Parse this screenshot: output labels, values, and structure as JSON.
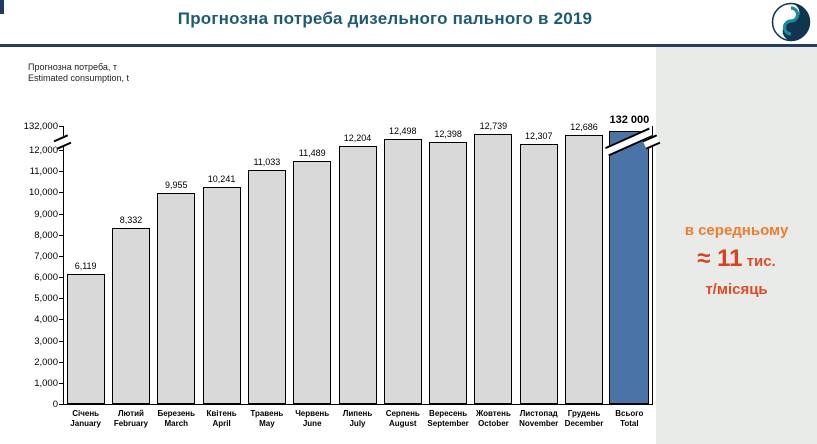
{
  "header": {
    "title": "Прогнозна потреба дизельного пального в 2019"
  },
  "axis": {
    "y_title_uk": "Прогнозна потреба, т",
    "y_title_en": "Estimated consumption, t"
  },
  "chart_data": {
    "type": "bar",
    "title": "Прогнозна потреба дизельного пального в 2019",
    "ylabel": "Прогнозна потреба, т / Estimated consumption, t",
    "ylim": [
      0,
      12000
    ],
    "axis_break": true,
    "grid": false,
    "legend": "none",
    "categories": [
      {
        "uk": "Січень",
        "en": "January"
      },
      {
        "uk": "Лютий",
        "en": "February"
      },
      {
        "uk": "Березень",
        "en": "March"
      },
      {
        "uk": "Квітень",
        "en": "April"
      },
      {
        "uk": "Травень",
        "en": "May"
      },
      {
        "uk": "Червень",
        "en": "June"
      },
      {
        "uk": "Липень",
        "en": "July"
      },
      {
        "uk": "Серпень",
        "en": "August"
      },
      {
        "uk": "Вересень",
        "en": "September"
      },
      {
        "uk": "Жовтень",
        "en": "October"
      },
      {
        "uk": "Листопад",
        "en": "November"
      },
      {
        "uk": "Грудень",
        "en": "December"
      }
    ],
    "values": [
      6119,
      8332,
      9955,
      10241,
      11033,
      11489,
      12204,
      12498,
      12398,
      12739,
      12307,
      12686
    ],
    "value_labels": [
      "6,119",
      "8,332",
      "9,955",
      "10,241",
      "11,033",
      "11,489",
      "12,204",
      "12,498",
      "12,398",
      "12,739",
      "12,307",
      "12,686"
    ],
    "total": {
      "uk": "Всього",
      "en": "Total",
      "value": 132000,
      "display": "132 000"
    },
    "y_ticks": [
      {
        "value": 0,
        "label": "0"
      },
      {
        "value": 1000,
        "label": "1,000"
      },
      {
        "value": 2000,
        "label": "2,000"
      },
      {
        "value": 3000,
        "label": "3,000"
      },
      {
        "value": 4000,
        "label": "4,000"
      },
      {
        "value": 5000,
        "label": "5,000"
      },
      {
        "value": 6000,
        "label": "6,000"
      },
      {
        "value": 7000,
        "label": "7,000"
      },
      {
        "value": 8000,
        "label": "8,000"
      },
      {
        "value": 9000,
        "label": "9,000"
      },
      {
        "value": 10000,
        "label": "10,000"
      },
      {
        "value": 11000,
        "label": "11,000"
      },
      {
        "value": 12000,
        "label": "12,000"
      }
    ],
    "y_top_tick_label": "132,000",
    "colors": {
      "bar": "#d9d9d9",
      "total_bar": "#4a74a8",
      "bar_border": "#000000"
    }
  },
  "annotation": {
    "line1": "в середньому",
    "approx_big": "≈ 11",
    "thousand": " тис.",
    "line3": "т/місяць",
    "color_orange": "#ed7d31",
    "color_red": "#d8431f"
  }
}
